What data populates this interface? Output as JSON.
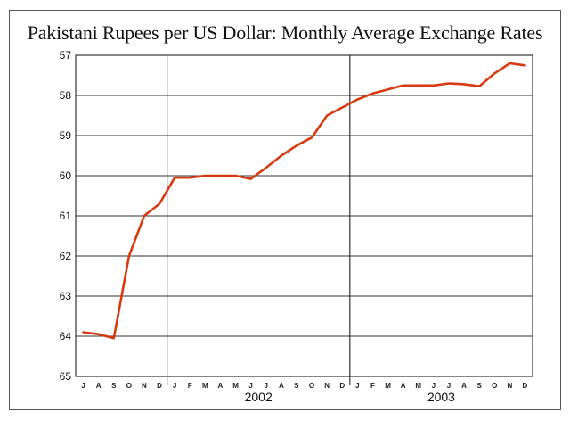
{
  "title": "Pakistani Rupees per US Dollar: Monthly Average Exchange Rates",
  "colors": {
    "line": "#d83a10",
    "grid": "#333333",
    "frame": "#555555"
  },
  "chart_data": {
    "type": "line",
    "title": "Pakistani Rupees per US Dollar: Monthly Average Exchange Rates",
    "xlabel": "",
    "ylabel": "",
    "y_inverted": true,
    "ylim": [
      57,
      65
    ],
    "yticks": [
      57,
      58,
      59,
      60,
      61,
      62,
      63,
      64,
      65
    ],
    "grid": true,
    "legend": "none",
    "x_month_labels": [
      "J",
      "A",
      "S",
      "O",
      "N",
      "D",
      "J",
      "F",
      "M",
      "A",
      "M",
      "J",
      "J",
      "A",
      "S",
      "O",
      "N",
      "D",
      "J",
      "F",
      "M",
      "A",
      "M",
      "J",
      "J",
      "A",
      "S",
      "O",
      "N",
      "D"
    ],
    "year_labels": [
      "2002",
      "2003"
    ],
    "x": [
      "2001-07",
      "2001-08",
      "2001-09",
      "2001-10",
      "2001-11",
      "2001-12",
      "2002-01",
      "2002-02",
      "2002-03",
      "2002-04",
      "2002-05",
      "2002-06",
      "2002-07",
      "2002-08",
      "2002-09",
      "2002-10",
      "2002-11",
      "2002-12",
      "2003-01",
      "2003-02",
      "2003-03",
      "2003-04",
      "2003-05",
      "2003-06",
      "2003-07",
      "2003-08",
      "2003-09",
      "2003-10",
      "2003-11",
      "2003-12"
    ],
    "series": [
      {
        "name": "PKR per USD",
        "values": [
          63.9,
          63.95,
          64.05,
          62.0,
          61.0,
          60.7,
          60.05,
          60.05,
          60.0,
          60.0,
          60.0,
          60.08,
          59.8,
          59.5,
          59.25,
          59.05,
          58.5,
          58.3,
          58.1,
          57.95,
          57.85,
          57.75,
          57.75,
          57.75,
          57.7,
          57.72,
          57.77,
          57.45,
          57.2,
          57.25
        ]
      }
    ]
  }
}
